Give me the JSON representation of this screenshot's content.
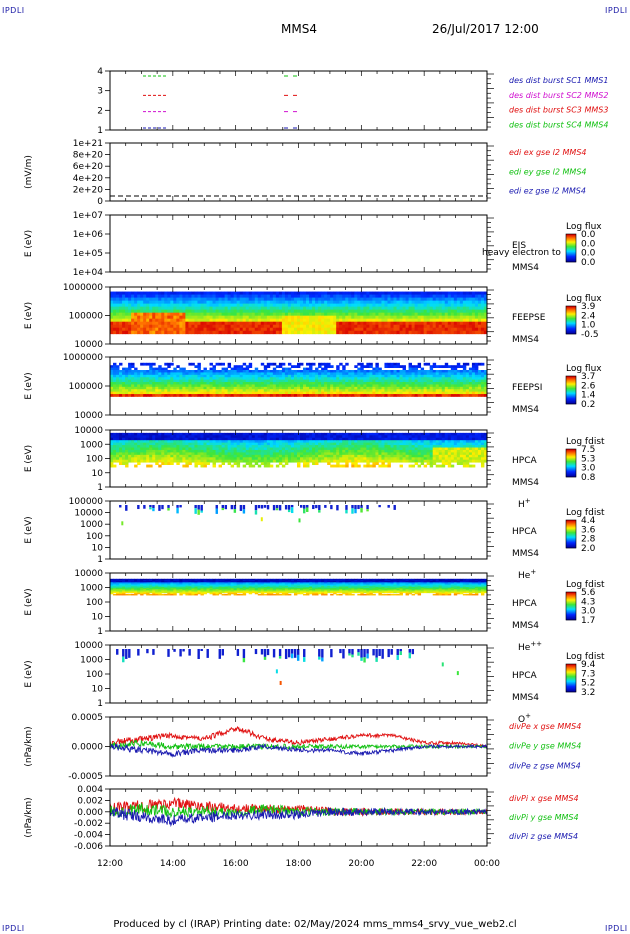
{
  "header": {
    "corner_label": "IPDLI",
    "spacecraft": "MMS4",
    "datetime": "26/Jul/2017 12:00"
  },
  "footer": {
    "text": "Produced by cl (IRAP)   Printing date: 02/May/2024   mms_mms4_srvy_vue_web2.cl"
  },
  "time_axis": [
    "12:00",
    "14:00",
    "16:00",
    "18:00",
    "20:00",
    "22:00",
    "00:00"
  ],
  "panels": [
    {
      "id": "burst",
      "ylabel": "",
      "yticks": [
        "4",
        "3",
        "2",
        "1"
      ],
      "labels": [
        {
          "text": "des dist burst SC1 MMS1",
          "color": "#1a1ab0"
        },
        {
          "text": "des dist burst SC2 MMS2",
          "color": "#d010d0"
        },
        {
          "text": "des dist burst SC3 MMS3",
          "color": "#e01010"
        },
        {
          "text": "des dist burst SC4 MMS4",
          "color": "#10c010"
        }
      ]
    },
    {
      "id": "edi",
      "ylabel": "(mV/m)",
      "yticks": [
        "1e+21",
        "8e+20",
        "6e+20",
        "4e+20",
        "2e+20",
        "0"
      ],
      "labels": [
        {
          "text": "edi ex gse l2 MMS4",
          "color": "#e01010"
        },
        {
          "text": "edi ey gse l2 MMS4",
          "color": "#10c010"
        },
        {
          "text": "edi ez gse l2 MMS4",
          "color": "#1a1ab0"
        }
      ]
    },
    {
      "id": "eis",
      "ylabel": "E (eV)",
      "yticks": [
        "1e+07",
        "1e+06",
        "1e+05",
        "1e+04"
      ],
      "name": [
        "EIS",
        "MMS4"
      ],
      "overlay": "heavy electron to",
      "cbar_title": "Log flux",
      "cbar_ticks": [
        "0.0",
        "0.0",
        "0.0",
        "0.0"
      ]
    },
    {
      "id": "feepse",
      "ylabel": "E (eV)",
      "yticks": [
        "1000000",
        "100000",
        "10000"
      ],
      "name": [
        "FEEPSE",
        "MMS4"
      ],
      "cbar_title": "Log flux",
      "cbar_ticks": [
        "3.9",
        "2.4",
        "1.0",
        "-0.5"
      ]
    },
    {
      "id": "feepsi",
      "ylabel": "E (eV)",
      "yticks": [
        "1000000",
        "100000",
        "10000"
      ],
      "name": [
        "FEEPSI",
        "MMS4"
      ],
      "cbar_title": "Log flux",
      "cbar_ticks": [
        "3.7",
        "2.6",
        "1.4",
        "0.2"
      ]
    },
    {
      "id": "hpca_h",
      "ylabel": "E (eV)",
      "yticks": [
        "10000",
        "1000",
        "100",
        "10",
        "1"
      ],
      "name": [
        "HPCA",
        "MMS4"
      ],
      "species": "H",
      "species_sup": "+",
      "cbar_title": "Log fdist",
      "cbar_ticks": [
        "7.5",
        "5.3",
        "3.0",
        "0.8"
      ]
    },
    {
      "id": "hpca_he",
      "ylabel": "E (eV)",
      "yticks": [
        "100000",
        "10000",
        "1000",
        "100",
        "10",
        "1"
      ],
      "name": [
        "HPCA",
        "MMS4"
      ],
      "species": "He",
      "species_sup": "+",
      "cbar_title": "Log fdist",
      "cbar_ticks": [
        "4.4",
        "3.6",
        "2.8",
        "2.0"
      ]
    },
    {
      "id": "hpca_hepp",
      "ylabel": "E (eV)",
      "yticks": [
        "10000",
        "1000",
        "100",
        "10",
        "1"
      ],
      "name": [
        "HPCA",
        "MMS4"
      ],
      "species": "He",
      "species_sup": "++",
      "cbar_title": "Log fdist",
      "cbar_ticks": [
        "5.6",
        "4.3",
        "3.0",
        "1.7"
      ]
    },
    {
      "id": "hpca_o",
      "ylabel": "E (eV)",
      "yticks": [
        "10000",
        "1000",
        "100",
        "10",
        "1"
      ],
      "name": [
        "HPCA",
        "MMS4"
      ],
      "species": "O",
      "species_sup": "+",
      "cbar_title": "Log fdist",
      "cbar_ticks": [
        "9.4",
        "7.3",
        "5.2",
        "3.2"
      ]
    },
    {
      "id": "divpe",
      "ylabel": "(nPa/km)",
      "yticks": [
        "0.0005",
        "0.0000",
        "-0.0005"
      ],
      "labels": [
        {
          "text": "divPe x gse MMS4",
          "color": "#e01010"
        },
        {
          "text": "divPe y gse MMS4",
          "color": "#10c010"
        },
        {
          "text": "divPe z gse MMS4",
          "color": "#1a1ab0"
        }
      ]
    },
    {
      "id": "divpi",
      "ylabel": "(nPa/km)",
      "yticks": [
        "0.004",
        "0.002",
        "0.000",
        "-0.002",
        "-0.004",
        "-0.006"
      ],
      "labels": [
        {
          "text": "divPi x gse MMS4",
          "color": "#e01010"
        },
        {
          "text": "divPi y gse MMS4",
          "color": "#10c010"
        },
        {
          "text": "divPi z gse MMS4",
          "color": "#1a1ab0"
        }
      ]
    }
  ],
  "chart_data": {
    "type": "line",
    "x_range": [
      "12:00",
      "00:00"
    ],
    "series": [
      {
        "name": "divPe x gse MMS4",
        "color": "#e01010",
        "panel": "divpe",
        "values": [
          0.0001,
          0.0002,
          0.0003,
          0.0002,
          0.0005,
          0.0002,
          0.0001,
          0.0002,
          0.0003,
          0.0003,
          0.0001,
          0.0001,
          0.0
        ]
      },
      {
        "name": "divPe y gse MMS4",
        "color": "#10c010",
        "panel": "divpe",
        "values": [
          0.0,
          0.0001,
          0.0,
          0.0,
          0.0,
          0.0,
          0.0,
          0.0,
          0.0,
          0.0,
          0.0,
          0.0,
          0.0
        ]
      },
      {
        "name": "divPe z gse MMS4",
        "color": "#1a1ab0",
        "panel": "divpe",
        "values": [
          0.0,
          -0.0001,
          -0.0002,
          -0.0001,
          -0.0001,
          0.0,
          -0.0001,
          -0.0001,
          -0.0002,
          -0.0001,
          0.0,
          0.0,
          0.0
        ]
      },
      {
        "name": "divPi x gse MMS4",
        "color": "#e01010",
        "panel": "divpi",
        "values": [
          0.0005,
          0.001,
          0.0015,
          0.001,
          0.0005,
          0.0005,
          0.0005,
          0.0,
          0.0,
          0.0,
          0.0,
          0.0,
          0.0
        ]
      },
      {
        "name": "divPi y gse MMS4",
        "color": "#10c010",
        "panel": "divpi",
        "values": [
          0.0,
          0.0005,
          0.0,
          0.0,
          0.0,
          0.0005,
          0.0,
          0.0,
          0.0,
          0.0,
          0.0,
          0.0,
          0.0
        ]
      },
      {
        "name": "divPi z gse MMS4",
        "color": "#1a1ab0",
        "panel": "divpi",
        "values": [
          0.0,
          -0.001,
          -0.0015,
          -0.001,
          -0.0005,
          -0.0005,
          -0.0005,
          0.0,
          0.0,
          0.0,
          0.0,
          0.0,
          0.0
        ]
      }
    ]
  }
}
